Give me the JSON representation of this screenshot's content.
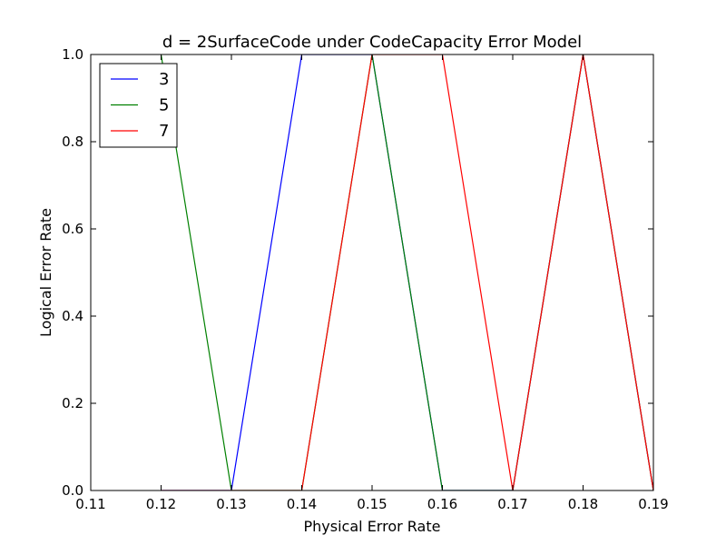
{
  "chart_data": {
    "type": "line",
    "title": "d = 2SurfaceCode under CodeCapacity Error Model",
    "xlabel": "Physical Error Rate",
    "ylabel": "Logical Error Rate",
    "xlim": [
      0.11,
      0.19
    ],
    "ylim": [
      0.0,
      1.0
    ],
    "xticks": [
      "0.11",
      "0.12",
      "0.13",
      "0.14",
      "0.15",
      "0.16",
      "0.17",
      "0.18",
      "0.19"
    ],
    "yticks": [
      "0.0",
      "0.2",
      "0.4",
      "0.6",
      "0.8",
      "1.0"
    ],
    "grid": false,
    "legend_position": "top-left",
    "series": [
      {
        "name": "3",
        "color": "#0000ff",
        "points": [
          [
            0.12,
            0.0
          ],
          [
            0.13,
            0.0
          ],
          [
            0.14,
            1.0
          ],
          [
            0.15,
            1.0
          ],
          [
            0.16,
            0.0
          ],
          [
            0.17,
            0.0
          ],
          [
            0.18,
            1.0
          ],
          [
            0.19,
            0.0
          ]
        ]
      },
      {
        "name": "5",
        "color": "#008000",
        "points": [
          [
            0.12,
            1.0
          ],
          [
            0.13,
            0.0
          ],
          [
            0.14,
            0.0
          ],
          [
            0.15,
            1.0
          ],
          [
            0.16,
            0.0
          ],
          [
            0.17,
            0.0
          ],
          [
            0.18,
            1.0
          ],
          [
            0.19,
            0.0
          ]
        ]
      },
      {
        "name": "7",
        "color": "#ff0000",
        "points": [
          [
            0.12,
            0.0
          ],
          [
            0.13,
            0.0
          ],
          [
            0.14,
            0.0
          ],
          [
            0.15,
            1.0
          ],
          [
            0.16,
            1.0
          ],
          [
            0.17,
            0.0
          ],
          [
            0.18,
            1.0
          ],
          [
            0.19,
            0.0
          ]
        ]
      }
    ]
  }
}
